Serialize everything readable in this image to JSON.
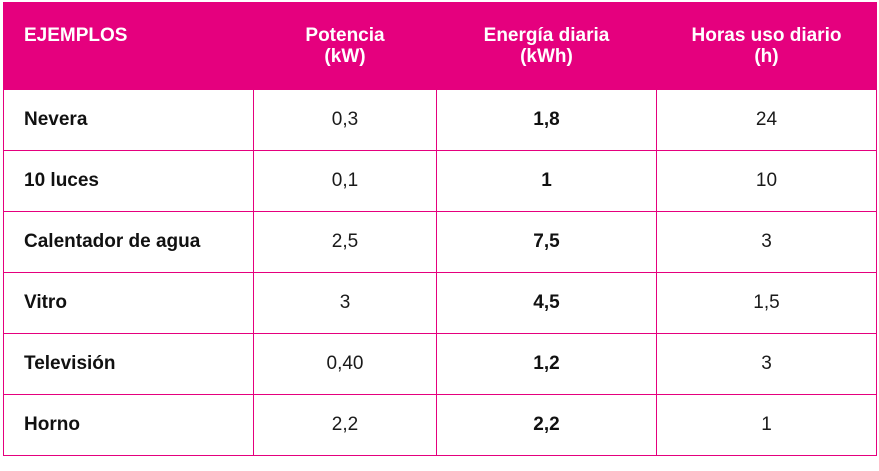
{
  "header": {
    "col1": "EJEMPLOS",
    "col2_line1": "Potencia",
    "col2_line2": "(kW)",
    "col3_line1": "Energía diaria",
    "col3_line2": "(kWh)",
    "col4_line1": "Horas uso diario",
    "col4_line2": "(h)"
  },
  "rows": [
    {
      "label": "Nevera",
      "potencia": "0,3",
      "energia": "1,8",
      "horas": "24"
    },
    {
      "label": "10 luces",
      "potencia": "0,1",
      "energia": "1",
      "horas": "10"
    },
    {
      "label": "Calentador de agua",
      "potencia": "2,5",
      "energia": "7,5",
      "horas": "3"
    },
    {
      "label": "Vitro",
      "potencia": "3",
      "energia": "4,5",
      "horas": "1,5"
    },
    {
      "label": "Televisión",
      "potencia": "0,40",
      "energia": "1,2",
      "horas": "3"
    },
    {
      "label": "Horno",
      "potencia": "2,2",
      "energia": "2,2",
      "horas": "1"
    }
  ],
  "colors": {
    "accent": "#e5007e",
    "header_text": "#ffffff"
  }
}
